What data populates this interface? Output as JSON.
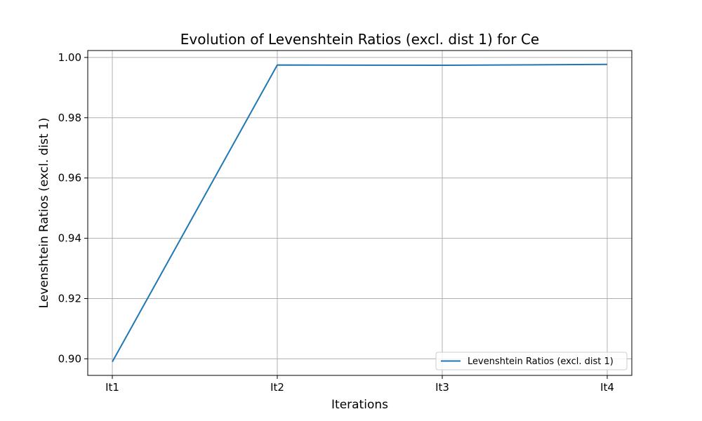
{
  "chart_data": {
    "type": "line",
    "title": "Evolution of Levenshtein Ratios (excl. dist 1) for Ce",
    "xlabel": "Iterations",
    "ylabel": "Levenshtein Ratios (excl. dist 1)",
    "categories": [
      "It1",
      "It2",
      "It3",
      "It4"
    ],
    "series": [
      {
        "name": "Levenshtein Ratios (excl. dist 1)",
        "values": [
          0.899,
          0.9975,
          0.9974,
          0.9977
        ],
        "color": "#1f77b4"
      }
    ],
    "yticks": [
      0.9,
      0.92,
      0.94,
      0.96,
      0.98,
      1.0
    ],
    "ytick_labels": [
      "0.90",
      "0.92",
      "0.94",
      "0.96",
      "0.98",
      "1.00"
    ],
    "ylim": [
      0.8945,
      1.0023
    ],
    "grid": true,
    "legend_position": "lower-right"
  }
}
